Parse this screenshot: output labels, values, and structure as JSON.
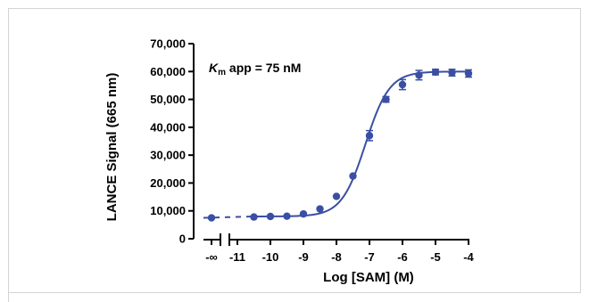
{
  "chart_data": {
    "type": "scatter",
    "xlabel": "Log [SAM] (M)",
    "ylabel": "LANCE Signal (665 nm)",
    "ylim": [
      0,
      70000
    ],
    "xlim": [
      -11,
      -4
    ],
    "x_ticks": [
      "-∞",
      "-11",
      "-10",
      "-9",
      "-8",
      "-7",
      "-6",
      "-5",
      "-4"
    ],
    "y_ticks": [
      "0",
      "10,000",
      "20,000",
      "30,000",
      "40,000",
      "50,000",
      "60,000",
      "70,000"
    ],
    "annotation": {
      "k_symbol": "K",
      "k_subscript": "m",
      "rest": " app = 75 nM"
    },
    "colors": {
      "series": "#3a4fa3",
      "axis": "#000000"
    },
    "series": [
      {
        "zero_concentration_point": {
          "x": "-∞",
          "y": 7500,
          "err": 500
        },
        "points": [
          {
            "x": -10.5,
            "y": 7800,
            "err": 300
          },
          {
            "x": -10.0,
            "y": 8000,
            "err": 300
          },
          {
            "x": -9.5,
            "y": 8100,
            "err": 300
          },
          {
            "x": -9.0,
            "y": 8900,
            "err": 400
          },
          {
            "x": -8.5,
            "y": 10700,
            "err": 500
          },
          {
            "x": -8.0,
            "y": 15200,
            "err": 600
          },
          {
            "x": -7.5,
            "y": 22500,
            "err": 800
          },
          {
            "x": -7.0,
            "y": 37000,
            "err": 1800
          },
          {
            "x": -6.5,
            "y": 50000,
            "err": 1000
          },
          {
            "x": -6.0,
            "y": 55300,
            "err": 1800
          },
          {
            "x": -5.5,
            "y": 58700,
            "err": 1700
          },
          {
            "x": -5.0,
            "y": 59800,
            "err": 1000
          },
          {
            "x": -4.5,
            "y": 59600,
            "err": 1200
          },
          {
            "x": -4.0,
            "y": 59300,
            "err": 1300
          }
        ],
        "fit": {
          "bottom": 8000,
          "top": 60000,
          "log_ec50": -7.12,
          "hill": 1.2
        }
      }
    ]
  }
}
